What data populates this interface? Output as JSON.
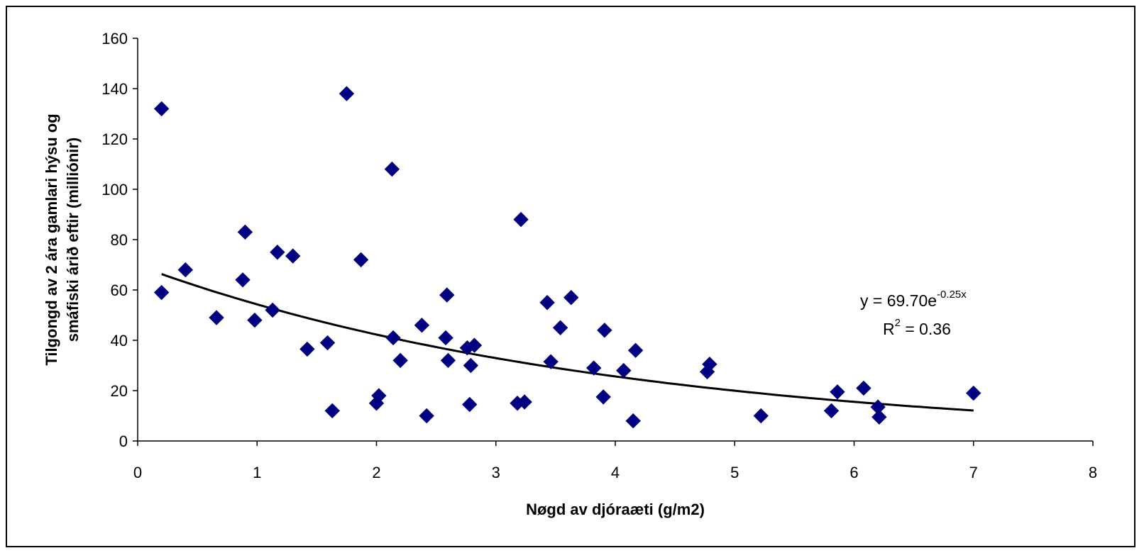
{
  "chart_data": {
    "type": "scatter",
    "xlabel": "Nøgd av djóraæti (g/m2)",
    "ylabel_lines": [
      "Tilgongd av 2 ára gamlari hýsu og",
      "smáfiski árið eftir (milliónir)"
    ],
    "xlim": [
      0,
      8
    ],
    "ylim": [
      0,
      160
    ],
    "xticks": [
      "0",
      "1",
      "2",
      "3",
      "4",
      "5",
      "6",
      "7",
      "8"
    ],
    "yticks": [
      "0",
      "20",
      "40",
      "60",
      "80",
      "100",
      "120",
      "140",
      "160"
    ],
    "grid": false,
    "legend": "none",
    "marker_color": "#000080",
    "trend_color": "#000000",
    "series": [
      {
        "marker": "diamond",
        "points": [
          [
            0.2,
            132
          ],
          [
            0.2,
            59
          ],
          [
            0.4,
            68
          ],
          [
            0.66,
            49
          ],
          [
            0.88,
            64
          ],
          [
            0.9,
            83
          ],
          [
            0.98,
            48
          ],
          [
            1.13,
            52
          ],
          [
            1.17,
            75
          ],
          [
            1.3,
            73.5
          ],
          [
            1.42,
            36.5
          ],
          [
            1.59,
            39
          ],
          [
            1.63,
            12
          ],
          [
            1.75,
            138
          ],
          [
            1.87,
            72
          ],
          [
            2.0,
            15
          ],
          [
            2.02,
            18
          ],
          [
            2.13,
            108
          ],
          [
            2.14,
            41
          ],
          [
            2.2,
            32
          ],
          [
            2.38,
            46
          ],
          [
            2.42,
            10
          ],
          [
            2.58,
            41
          ],
          [
            2.59,
            58
          ],
          [
            2.6,
            32
          ],
          [
            2.76,
            37
          ],
          [
            2.78,
            14.5
          ],
          [
            2.79,
            30
          ],
          [
            2.82,
            38
          ],
          [
            3.18,
            15
          ],
          [
            3.21,
            88
          ],
          [
            3.24,
            15.5
          ],
          [
            3.43,
            55
          ],
          [
            3.46,
            31.5
          ],
          [
            3.54,
            45
          ],
          [
            3.63,
            57
          ],
          [
            3.82,
            29
          ],
          [
            3.9,
            17.5
          ],
          [
            3.91,
            44
          ],
          [
            4.07,
            28
          ],
          [
            4.15,
            8
          ],
          [
            4.17,
            36
          ],
          [
            4.77,
            27.5
          ],
          [
            4.79,
            30.5
          ],
          [
            5.22,
            10
          ],
          [
            5.81,
            12
          ],
          [
            5.86,
            19.5
          ],
          [
            6.08,
            21
          ],
          [
            6.2,
            13.5
          ],
          [
            6.21,
            9.5
          ],
          [
            7.0,
            19
          ]
        ]
      }
    ],
    "trendline": {
      "type": "exponential",
      "a": 69.7,
      "b": -0.25,
      "x_range": [
        0.2,
        7.0
      ],
      "equation_text": "y = 69.70e",
      "equation_exponent": "-0.25x",
      "r2_prefix": "R",
      "r2_sup": "2",
      "r2_suffix": " = 0.36"
    }
  }
}
